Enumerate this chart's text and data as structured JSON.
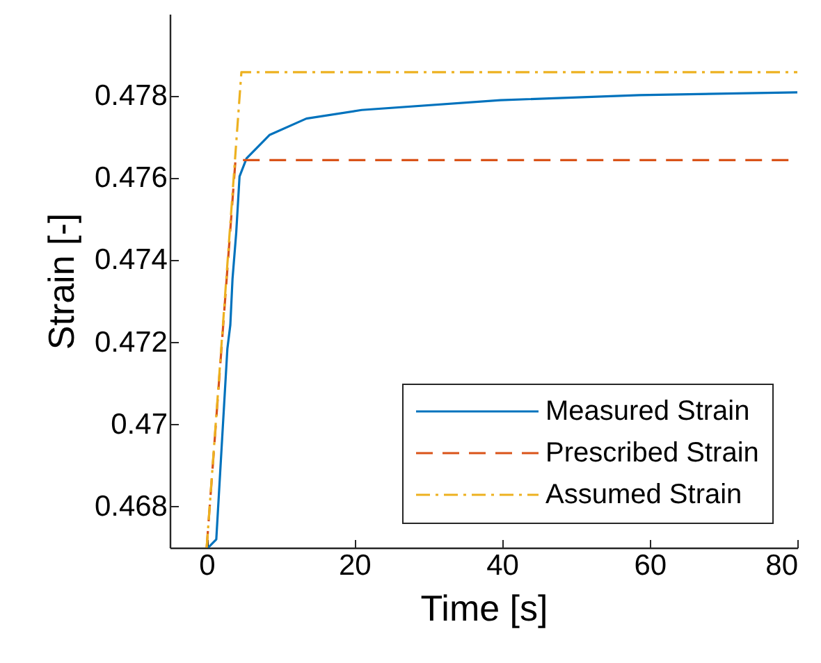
{
  "chart_data": {
    "type": "line",
    "xlabel": "Time [s]",
    "ylabel": "Strain [-]",
    "xlim": [
      -5,
      80
    ],
    "xticks": [
      0,
      20,
      40,
      60,
      80
    ],
    "ylim": [
      0.467,
      0.48
    ],
    "yticks": [
      0.468,
      0.47,
      0.472,
      0.474,
      0.476,
      0.478
    ],
    "grid": false,
    "legend": "bottom right",
    "marker": "none",
    "series": [
      {
        "name": "Measured Strain",
        "color": "#0072bd",
        "line_style": "solid",
        "x": [
          0.2,
          1.3,
          2.8,
          3.2,
          3.5,
          4.0,
          4.45,
          5.4,
          8.5,
          13.5,
          21,
          39.8,
          58.6,
          80
        ],
        "values": [
          0.467,
          0.4672,
          0.47184,
          0.47242,
          0.47355,
          0.47467,
          0.47604,
          0.47648,
          0.47705,
          0.47745,
          0.47766,
          0.4779,
          0.47802,
          0.47809
        ]
      },
      {
        "name": "Prescribed Strain",
        "color": "#d95319",
        "line_style": "dashed",
        "x": [
          0,
          3.9,
          80
        ],
        "values": [
          0.467,
          0.47644,
          0.47644
        ]
      },
      {
        "name": "Assumed Strain",
        "color": "#edb120",
        "line_style": "dashdot",
        "x": [
          0,
          4.7,
          80
        ],
        "values": [
          0.467,
          0.47858,
          0.47858
        ]
      }
    ]
  }
}
